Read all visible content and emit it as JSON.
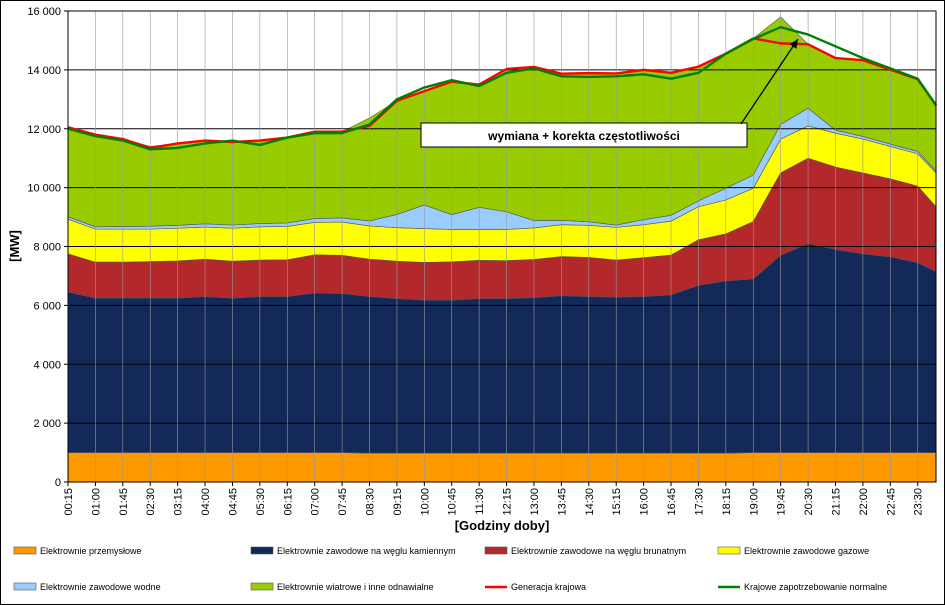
{
  "chart_data": {
    "type": "area",
    "x_tick_labels": [
      "00:15",
      "01:00",
      "01:45",
      "02:30",
      "03:15",
      "04:00",
      "04:45",
      "05:30",
      "06:15",
      "07:00",
      "07:45",
      "08:30",
      "09:15",
      "10:00",
      "10:45",
      "11:30",
      "12:15",
      "13:00",
      "13:45",
      "14:30",
      "15:15",
      "16:00",
      "16:45",
      "17:30",
      "18:15",
      "19:00",
      "19:45",
      "20:30",
      "21:15",
      "22:00",
      "22:45",
      "23:30"
    ],
    "xlabel": "[Godziny doby]",
    "ylabel": "[MW]",
    "ylim": [
      0,
      16000
    ],
    "y_ticks": [
      0,
      2000,
      4000,
      6000,
      8000,
      10000,
      12000,
      14000,
      16000
    ],
    "y_tick_labels": [
      "0",
      "2 000",
      "4 000",
      "6 000",
      "8 000",
      "10 000",
      "12 000",
      "14 000",
      "16 000"
    ],
    "grid": "vertical and horizontal gridlines",
    "legend_position": "bottom",
    "annotation": "wymiana + korekta częstotliwości",
    "x_hours": [
      0.25,
      1,
      1.75,
      2.5,
      3.25,
      4,
      4.75,
      5.5,
      6.25,
      7,
      7.75,
      8.5,
      9.25,
      10,
      10.75,
      11.5,
      12.25,
      13,
      13.75,
      14.5,
      15.25,
      16,
      16.75,
      17.5,
      18.25,
      19,
      19.75,
      20.5,
      21.25,
      22,
      22.75,
      23.5,
      24
    ],
    "stacked_series": [
      {
        "name": "Elektrownie przemysłowe",
        "color": "#ff9900",
        "values": [
          1000,
          1000,
          1000,
          1000,
          1000,
          1000,
          1000,
          1000,
          1000,
          1000,
          1000,
          980,
          980,
          980,
          980,
          980,
          980,
          980,
          980,
          980,
          980,
          980,
          980,
          980,
          980,
          1000,
          1000,
          1000,
          1000,
          1000,
          1000,
          1000,
          1000
        ]
      },
      {
        "name": "Elektrownie zawodowe na węglu kamiennym",
        "color": "#12295a",
        "values": [
          5450,
          5250,
          5250,
          5250,
          5250,
          5300,
          5250,
          5300,
          5300,
          5420,
          5400,
          5320,
          5250,
          5200,
          5200,
          5250,
          5250,
          5280,
          5350,
          5320,
          5300,
          5320,
          5380,
          5700,
          5850,
          5900,
          6700,
          7100,
          6900,
          6750,
          6650,
          6450,
          6150
        ]
      },
      {
        "name": "Elektrownie zawodowe na węglu brunatnym",
        "color": "#b3282a",
        "values": [
          1300,
          1220,
          1220,
          1240,
          1260,
          1270,
          1250,
          1240,
          1250,
          1300,
          1300,
          1270,
          1270,
          1280,
          1300,
          1300,
          1290,
          1300,
          1330,
          1330,
          1260,
          1320,
          1350,
          1550,
          1600,
          1950,
          2800,
          2900,
          2800,
          2750,
          2650,
          2600,
          2200
        ]
      },
      {
        "name": "Elektrownie zawodowe gazowe",
        "color": "#ffff00",
        "values": [
          1180,
          1120,
          1120,
          1100,
          1110,
          1090,
          1120,
          1130,
          1130,
          1100,
          1130,
          1130,
          1140,
          1150,
          1100,
          1050,
          1060,
          1070,
          1080,
          1090,
          1110,
          1120,
          1150,
          1120,
          1150,
          1130,
          1150,
          1100,
          1150,
          1150,
          1100,
          1100,
          1150
        ]
      },
      {
        "name": "Elektrownie zawodowe wodne",
        "color": "#99ccff",
        "values": [
          80,
          80,
          90,
          100,
          100,
          110,
          110,
          110,
          120,
          130,
          140,
          170,
          450,
          800,
          500,
          750,
          600,
          250,
          150,
          120,
          80,
          170,
          200,
          200,
          400,
          450,
          500,
          600,
          100,
          90,
          80,
          80,
          60
        ]
      },
      {
        "name": "Elektrownie wiatrowe i inne odnawialne",
        "color": "#99cc00",
        "values": [
          3040,
          3130,
          2970,
          2710,
          2780,
          2830,
          2820,
          2820,
          2900,
          2950,
          2930,
          3500,
          3860,
          3870,
          4520,
          4170,
          4850,
          5220,
          4960,
          5050,
          5150,
          5090,
          4840,
          4560,
          4570,
          4640,
          3650,
          2170,
          2450,
          2610,
          2500,
          2450,
          2240
        ]
      }
    ],
    "line_series": [
      {
        "name": "Generacja krajowa",
        "color": "#ff0000",
        "values": [
          12050,
          11800,
          11650,
          11350,
          11500,
          11600,
          11550,
          11600,
          11700,
          11900,
          11900,
          12100,
          12950,
          13280,
          13600,
          13500,
          14030,
          14100,
          13870,
          13890,
          13880,
          14000,
          13900,
          14110,
          14550,
          15070,
          14900,
          14870,
          14400,
          14330,
          14010,
          13680,
          12800
        ]
      },
      {
        "name": "Krajowe zapotrzebowanie normalne",
        "color": "#008000",
        "values": [
          12000,
          11750,
          11600,
          11300,
          11350,
          11500,
          11600,
          11450,
          11700,
          11850,
          11850,
          12150,
          13000,
          13400,
          13650,
          13450,
          13900,
          14050,
          13780,
          13760,
          13780,
          13850,
          13700,
          13900,
          14550,
          15050,
          15450,
          15200,
          14800,
          14400,
          14050,
          13700,
          12800
        ]
      }
    ]
  }
}
